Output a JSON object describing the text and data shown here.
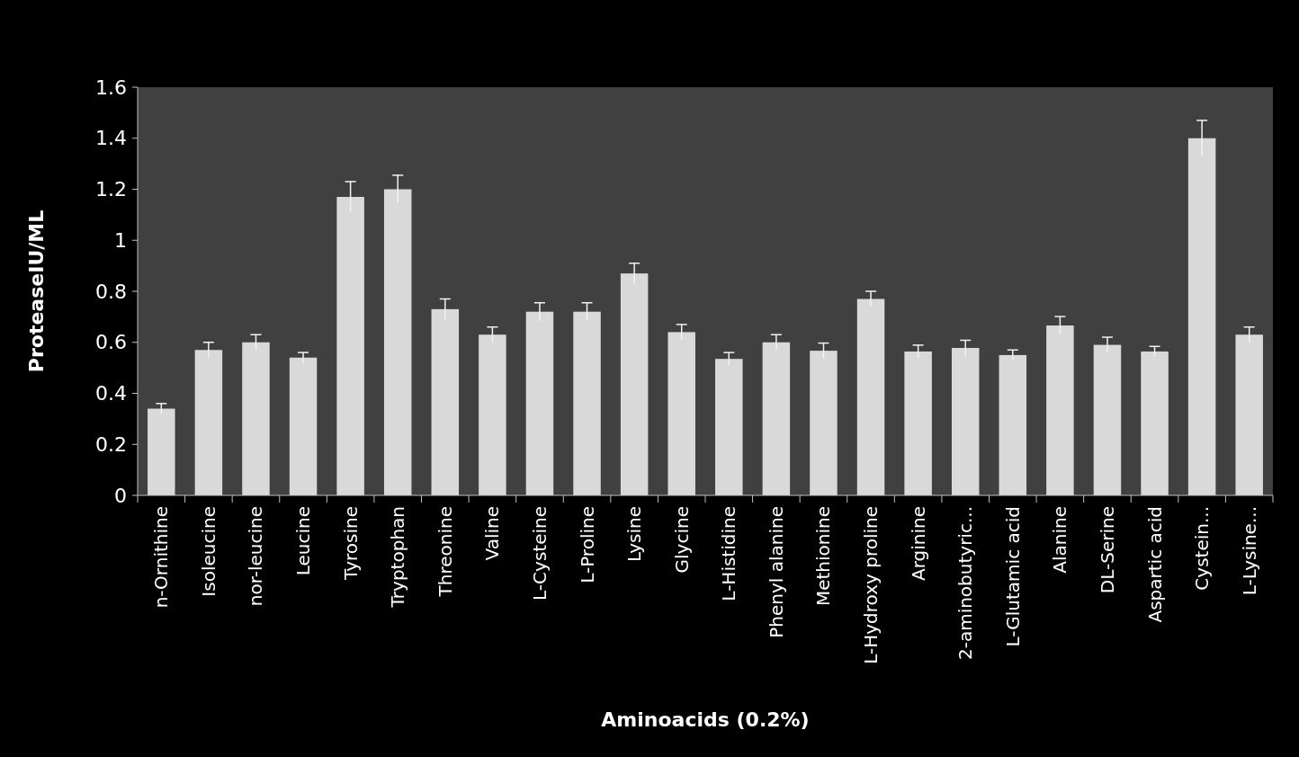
{
  "chart_data": {
    "type": "bar",
    "xlabel": "Aminoacids (0.2%)",
    "ylabel": "ProteaseIU/ML",
    "categories": [
      "n-Ornithine",
      "Isoleucine",
      "nor-leucine",
      "Leucine",
      "Tyrosine",
      "Tryptophan",
      "Threonine",
      "Valine",
      "L-Cysteine",
      "L-Proline",
      "Lysine",
      "Glycine",
      "L-Histidine",
      "Phenyl alanine",
      "Methionine",
      "L-Hydroxy proline",
      "Arginine",
      "2-aminobutyric...",
      "L-Glutamic acid",
      "Alanine",
      "DL-Serine",
      "Aspartic acid",
      "Cystein...",
      "L-Lysine..."
    ],
    "values": [
      0.34,
      0.57,
      0.6,
      0.54,
      1.17,
      1.2,
      0.73,
      0.63,
      0.72,
      0.72,
      0.87,
      0.64,
      0.535,
      0.6,
      0.567,
      0.77,
      0.564,
      0.578,
      0.55,
      0.666,
      0.59,
      0.564,
      1.4,
      0.63
    ],
    "errors": [
      0.02,
      0.03,
      0.03,
      0.02,
      0.06,
      0.055,
      0.04,
      0.03,
      0.035,
      0.035,
      0.04,
      0.03,
      0.025,
      0.03,
      0.03,
      0.03,
      0.025,
      0.03,
      0.02,
      0.035,
      0.03,
      0.02,
      0.07,
      0.03
    ],
    "color": "#d9d9d9",
    "ylim": [
      0,
      1.6
    ],
    "yticks": [
      {
        "value": 0,
        "label": "0"
      },
      {
        "value": 0.2,
        "label": "0.2"
      },
      {
        "value": 0.4,
        "label": "0.4"
      },
      {
        "value": 0.6,
        "label": "0.6"
      },
      {
        "value": 0.8,
        "label": "0.8"
      },
      {
        "value": 1,
        "label": "1"
      },
      {
        "value": 1.2,
        "label": "1.2"
      },
      {
        "value": 1.4,
        "label": "1.4"
      },
      {
        "value": 1.6,
        "label": "1.6"
      }
    ],
    "grid": false
  }
}
